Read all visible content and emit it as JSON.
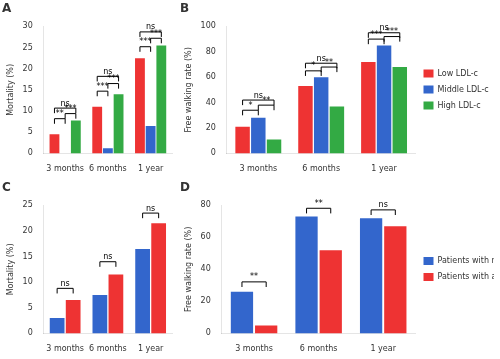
{
  "chart_data": [
    {
      "type": "bar",
      "title": "A",
      "ylabel": "Mortality (%)",
      "categories": [
        "3 months",
        "6 months",
        "1 year"
      ],
      "series": [
        {
          "name": "Low LDL-c",
          "color": "#EE3333",
          "values": [
            4.5,
            11.0,
            22.5
          ]
        },
        {
          "name": "Middle LDL-c",
          "color": "#3366CC",
          "values": [
            0.0,
            1.2,
            6.5
          ]
        },
        {
          "name": "High LDL-c",
          "color": "#33AA44",
          "values": [
            7.8,
            14.0,
            25.5
          ]
        }
      ],
      "ylim": [
        0,
        30
      ],
      "yticks": [
        0,
        5,
        10,
        15,
        20,
        25,
        30
      ],
      "grid": false,
      "annotations": [
        {
          "text": "ns",
          "category": "3 months",
          "from": "Low LDL-c",
          "to": "High LDL-c",
          "y": 9.5
        },
        {
          "text": "**",
          "category": "3 months",
          "from": "Low LDL-c",
          "to": "Middle LDL-c",
          "y": 7.0
        },
        {
          "text": "***",
          "category": "3 months",
          "from": "Middle LDL-c",
          "to": "High LDL-c",
          "y": 8.2
        },
        {
          "text": "ns",
          "category": "6 months",
          "from": "Low LDL-c",
          "to": "High LDL-c",
          "y": 17.0
        },
        {
          "text": "***",
          "category": "6 months",
          "from": "Low LDL-c",
          "to": "Middle LDL-c",
          "y": 13.5
        },
        {
          "text": "***",
          "category": "6 months",
          "from": "Middle LDL-c",
          "to": "High LDL-c",
          "y": 15.3
        },
        {
          "text": "ns",
          "category": "1 year",
          "from": "Low LDL-c",
          "to": "High LDL-c",
          "y": 27.5
        },
        {
          "text": "***",
          "category": "1 year",
          "from": "Low LDL-c",
          "to": "Middle LDL-c",
          "y": 24.0
        },
        {
          "text": "***",
          "category": "1 year",
          "from": "Middle LDL-c",
          "to": "High LDL-c",
          "y": 26.0
        }
      ]
    },
    {
      "type": "bar",
      "title": "B",
      "ylabel": "Free walking rate (%)",
      "categories": [
        "3 months",
        "6 months",
        "1 year"
      ],
      "series": [
        {
          "name": "Low LDL-c",
          "color": "#EE3333",
          "values": [
            21.0,
            53.0,
            72.0
          ]
        },
        {
          "name": "Middle LDL-c",
          "color": "#3366CC",
          "values": [
            28.0,
            60.0,
            85.0
          ]
        },
        {
          "name": "High LDL-c",
          "color": "#33AA44",
          "values": [
            11.0,
            37.0,
            68.0
          ]
        }
      ],
      "ylim": [
        0,
        100
      ],
      "yticks": [
        0,
        20,
        40,
        60,
        80,
        100
      ],
      "grid": false,
      "legend": "right",
      "annotations": [
        {
          "text": "ns",
          "category": "3 months",
          "from": "Low LDL-c",
          "to": "High LDL-c",
          "y": 38
        },
        {
          "text": "*",
          "category": "3 months",
          "from": "Low LDL-c",
          "to": "Middle LDL-c",
          "y": 30
        },
        {
          "text": "**",
          "category": "3 months",
          "from": "Middle LDL-c",
          "to": "High LDL-c",
          "y": 34
        },
        {
          "text": "ns",
          "category": "6 months",
          "from": "Low LDL-c",
          "to": "High LDL-c",
          "y": 67
        },
        {
          "text": "*",
          "category": "6 months",
          "from": "Low LDL-c",
          "to": "Middle LDL-c",
          "y": 61
        },
        {
          "text": "**",
          "category": "6 months",
          "from": "Middle LDL-c",
          "to": "High LDL-c",
          "y": 64
        },
        {
          "text": "ns",
          "category": "1 year",
          "from": "Low LDL-c",
          "to": "High LDL-c",
          "y": 91
        },
        {
          "text": "***",
          "category": "1 year",
          "from": "Low LDL-c",
          "to": "Middle LDL-c",
          "y": 86
        },
        {
          "text": "***",
          "category": "1 year",
          "from": "Middle LDL-c",
          "to": "High LDL-c",
          "y": 88
        }
      ]
    },
    {
      "type": "bar",
      "title": "C",
      "ylabel": "Mortality (%)",
      "categories": [
        "3 months",
        "6 months",
        "1 year"
      ],
      "series": [
        {
          "name": "Patients with normal LDL-c",
          "color": "#3366CC",
          "values": [
            3.0,
            7.5,
            16.5
          ]
        },
        {
          "name": "Patients with abnormal LDL-c",
          "color": "#EE3333",
          "values": [
            6.5,
            11.5,
            21.5
          ]
        }
      ],
      "ylim": [
        0,
        25
      ],
      "yticks": [
        0,
        5,
        10,
        15,
        20,
        25
      ],
      "grid": false,
      "annotations": [
        {
          "text": "ns",
          "category": "3 months",
          "from": "Patients with normal LDL-c",
          "to": "Patients with abnormal LDL-c",
          "y": 7.8
        },
        {
          "text": "ns",
          "category": "6 months",
          "from": "Patients with normal LDL-c",
          "to": "Patients with abnormal LDL-c",
          "y": 13.0
        },
        {
          "text": "ns",
          "category": "1 year",
          "from": "Patients with normal LDL-c",
          "to": "Patients with abnormal LDL-c",
          "y": 22.5
        }
      ]
    },
    {
      "type": "bar",
      "title": "D",
      "ylabel": "Free walking rate (%)",
      "categories": [
        "3 months",
        "6 months",
        "1 year"
      ],
      "series": [
        {
          "name": "Patients with normal LDL-c",
          "color": "#3366CC",
          "values": [
            26.0,
            73.0,
            72.0
          ]
        },
        {
          "name": "Patients with abnormal LDL-c",
          "color": "#EE3333",
          "values": [
            5.0,
            52.0,
            67.0
          ]
        }
      ],
      "ylim": [
        0,
        80
      ],
      "yticks": [
        0,
        20,
        40,
        60,
        80
      ],
      "grid": false,
      "legend": "right",
      "annotations": [
        {
          "text": "**",
          "category": "3 months",
          "from": "Patients with normal LDL-c",
          "to": "Patients with abnormal LDL-c",
          "y": 29
        },
        {
          "text": "**",
          "category": "6 months",
          "from": "Patients with normal LDL-c",
          "to": "Patients with abnormal LDL-c",
          "y": 75
        },
        {
          "text": "ns",
          "category": "1 year",
          "from": "Patients with normal LDL-c",
          "to": "Patients with abnormal LDL-c",
          "y": 74
        }
      ]
    }
  ]
}
